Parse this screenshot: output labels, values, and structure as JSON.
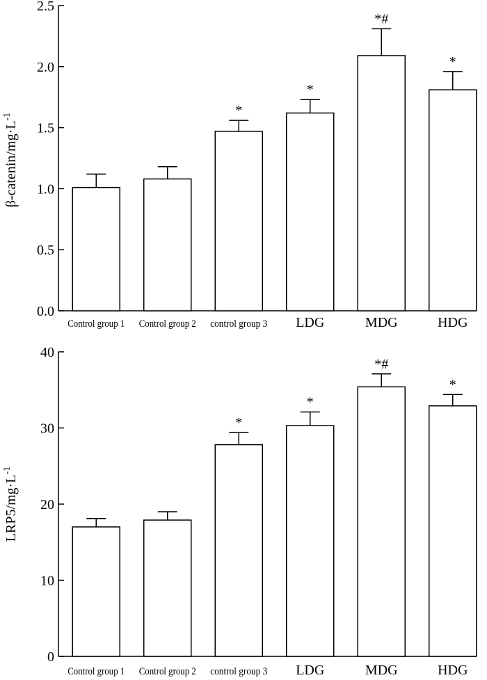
{
  "chart_data": [
    {
      "type": "bar",
      "title": "",
      "xlabel": "",
      "ylabel": "β-catenin/mg·L",
      "ylabel_superscript": "-1",
      "categories": [
        "Control group 1",
        "Control group 2",
        "control group 3",
        "LDG",
        "MDG",
        "HDG"
      ],
      "values": [
        1.01,
        1.08,
        1.47,
        1.62,
        2.09,
        1.81
      ],
      "errors": [
        0.11,
        0.1,
        0.09,
        0.11,
        0.22,
        0.15
      ],
      "annotations": [
        "",
        "",
        "*",
        "*",
        "*#",
        "*"
      ],
      "ylim": [
        0,
        2.5
      ],
      "yticks": [
        0.0,
        0.5,
        1.0,
        1.5,
        2.0,
        2.5
      ],
      "ytick_labels": [
        "0.0",
        "0.5",
        "1.0",
        "1.5",
        "2.0",
        "2.5"
      ],
      "grid": false
    },
    {
      "type": "bar",
      "title": "",
      "xlabel": "",
      "ylabel": "LRP5/mg·L",
      "ylabel_superscript": "-1",
      "categories": [
        "Control group 1",
        "Control group 2",
        "control group 3",
        "LDG",
        "MDG",
        "HDG"
      ],
      "values": [
        17.0,
        17.9,
        27.8,
        30.3,
        35.4,
        32.9
      ],
      "errors": [
        1.1,
        1.1,
        1.6,
        1.8,
        1.7,
        1.5
      ],
      "annotations": [
        "",
        "",
        "*",
        "*",
        "*#",
        "*"
      ],
      "ylim": [
        0,
        40
      ],
      "yticks": [
        0,
        10,
        20,
        30,
        40
      ],
      "ytick_labels": [
        "0",
        "10",
        "20",
        "30",
        "40"
      ],
      "grid": false
    }
  ]
}
